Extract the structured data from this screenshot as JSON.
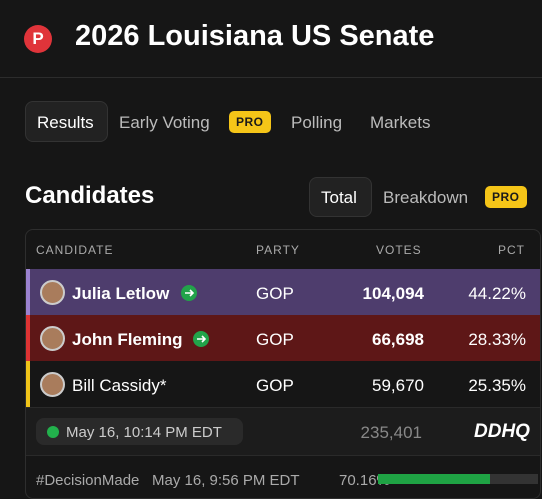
{
  "header": {
    "badge": "P",
    "title": "2026 Louisiana US Senate"
  },
  "tabs": [
    {
      "label": "Results"
    },
    {
      "label": "Early Voting",
      "badge": "PRO"
    },
    {
      "label": "Polling"
    },
    {
      "label": "Markets"
    }
  ],
  "section": {
    "title": "Candidates",
    "toggles": [
      {
        "label": "Total"
      },
      {
        "label": "Breakdown",
        "badge": "PRO"
      }
    ]
  },
  "table": {
    "columns": [
      "CANDIDATE",
      "PARTY",
      "VOTES",
      "PCT"
    ],
    "rows": [
      [
        "Julia Letlow",
        "GOP",
        "104,094",
        "44.22%"
      ],
      [
        "John Fleming",
        "GOP",
        "66,698",
        "28.33%"
      ],
      [
        "Bill Cassidy*",
        "GOP",
        "59,670",
        "25.35%"
      ]
    ],
    "updated": "May 16, 10:14 PM EDT",
    "total_votes": "235,401",
    "source": "DDHQ"
  },
  "decision": {
    "tag": "#DecisionMade",
    "time": "May 16, 9:56 PM EDT",
    "reported": {
      "value": 70.16,
      "label": "70.16%"
    }
  }
}
